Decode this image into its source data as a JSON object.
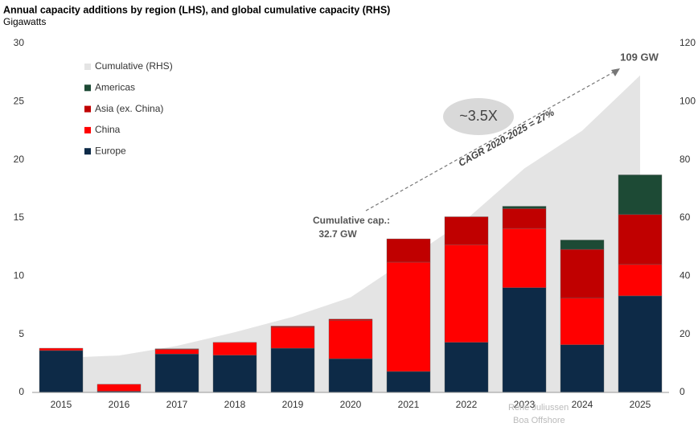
{
  "chart_data": {
    "type": "bar",
    "stacked": true,
    "title": "Annual capacity additions by region (LHS), and global cumulative capacity (RHS)",
    "subtitle": "Gigawatts",
    "categories": [
      "2015",
      "2016",
      "2017",
      "2018",
      "2019",
      "2020",
      "2021",
      "2022",
      "2023",
      "2024",
      "2025"
    ],
    "series": [
      {
        "name": "Cumulative (RHS)",
        "type": "area",
        "axis": "y2",
        "color": "#e4e4e4",
        "values": [
          11.9,
          12.7,
          16,
          20.7,
          26,
          32.7,
          46,
          59.5,
          77,
          90,
          109
        ]
      },
      {
        "name": "Americas",
        "color": "#1d4a35",
        "values": [
          0,
          0,
          0,
          0,
          0,
          0,
          0,
          0,
          0.2,
          0.8,
          3.4
        ]
      },
      {
        "name": "Asia (ex. China)",
        "color": "#c00000",
        "values": [
          0,
          0,
          0.05,
          0,
          0.1,
          0.1,
          2.0,
          2.4,
          1.7,
          4.2,
          4.3
        ]
      },
      {
        "name": "China",
        "color": "#ff0000",
        "values": [
          0.2,
          0.6,
          0.4,
          1.1,
          1.8,
          3.3,
          9.4,
          8.4,
          5.1,
          4.0,
          2.7
        ]
      },
      {
        "name": "Europe",
        "color": "#0d2a47",
        "values": [
          3.6,
          0.1,
          3.3,
          3.2,
          3.8,
          2.9,
          1.8,
          4.3,
          9.0,
          4.1,
          8.3
        ]
      }
    ],
    "ylim": [
      0,
      30
    ],
    "yticks": [
      0,
      5,
      10,
      15,
      20,
      25,
      30
    ],
    "y2lim": [
      0,
      120
    ],
    "y2ticks": [
      0,
      20,
      40,
      60,
      80,
      100,
      120
    ],
    "annotations": [
      "109 GW",
      "Cumulative cap.:",
      "32.7 GW",
      "~3.5X",
      "CAGR 2020-2025 = 27%",
      "Rene Juliussen",
      "Boa Offshore"
    ]
  }
}
